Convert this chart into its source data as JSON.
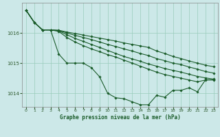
{
  "title": "Graphe pression niveau de la mer (hPa)",
  "bg_color": "#cce8e8",
  "grid_color": "#99ccbb",
  "line_color": "#1a5c2a",
  "tick_color": "#2d5a2d",
  "xlabel_color": "#1a5c2a",
  "xlim": [
    -0.5,
    23.5
  ],
  "ylim": [
    1013.55,
    1017.0
  ],
  "yticks": [
    1014,
    1015,
    1016
  ],
  "xticks": [
    0,
    1,
    2,
    3,
    4,
    5,
    6,
    7,
    8,
    9,
    10,
    11,
    12,
    13,
    14,
    15,
    16,
    17,
    18,
    19,
    20,
    21,
    22,
    23
  ],
  "series": [
    [
      1016.75,
      1016.35,
      1016.1,
      1016.1,
      1015.3,
      1015.0,
      1015.0,
      1015.0,
      1014.85,
      1014.55,
      1014.0,
      1013.85,
      1013.82,
      1013.72,
      1013.62,
      1013.62,
      1013.93,
      1013.87,
      1014.1,
      1014.1,
      1014.18,
      1014.05,
      1014.45,
      1014.45
    ],
    [
      1016.75,
      1016.35,
      1016.1,
      1016.1,
      1016.05,
      1015.85,
      1015.7,
      1015.58,
      1015.47,
      1015.38,
      1015.28,
      1015.2,
      1015.1,
      1015.0,
      1014.9,
      1014.8,
      1014.7,
      1014.62,
      1014.56,
      1014.5,
      1014.44,
      1014.38,
      1014.44,
      1014.44
    ],
    [
      1016.75,
      1016.35,
      1016.1,
      1016.1,
      1016.07,
      1015.94,
      1015.82,
      1015.72,
      1015.62,
      1015.52,
      1015.42,
      1015.32,
      1015.22,
      1015.14,
      1015.06,
      1014.97,
      1014.9,
      1014.82,
      1014.76,
      1014.7,
      1014.63,
      1014.56,
      1014.51,
      1014.47
    ],
    [
      1016.75,
      1016.35,
      1016.1,
      1016.1,
      1016.08,
      1016.0,
      1015.92,
      1015.85,
      1015.78,
      1015.7,
      1015.62,
      1015.55,
      1015.47,
      1015.4,
      1015.32,
      1015.25,
      1015.15,
      1015.08,
      1015.0,
      1014.95,
      1014.87,
      1014.8,
      1014.72,
      1014.67
    ],
    [
      1016.75,
      1016.35,
      1016.1,
      1016.1,
      1016.09,
      1016.03,
      1015.98,
      1015.93,
      1015.88,
      1015.83,
      1015.78,
      1015.73,
      1015.67,
      1015.62,
      1015.57,
      1015.52,
      1015.4,
      1015.32,
      1015.22,
      1015.15,
      1015.07,
      1015.0,
      1014.93,
      1014.88
    ]
  ],
  "marker": "D",
  "marker_size": 1.8,
  "linewidth": 0.8
}
